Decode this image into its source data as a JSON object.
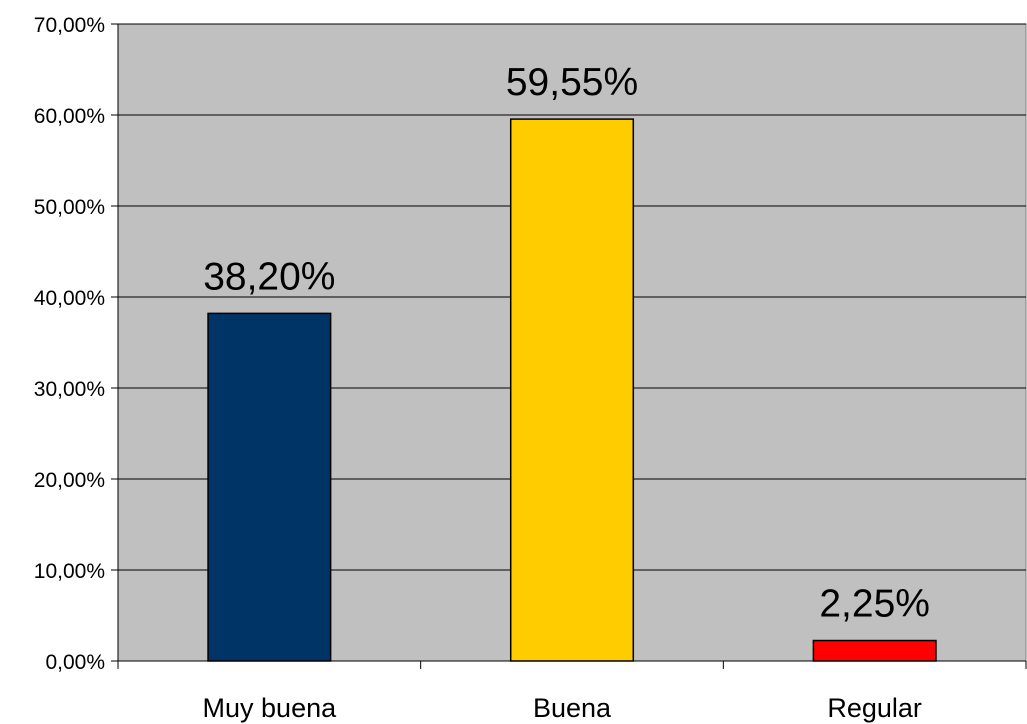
{
  "chart_data": {
    "type": "bar",
    "categories": [
      "Muy buena",
      "Buena",
      "Regular"
    ],
    "values": [
      38.2,
      59.55,
      2.25
    ],
    "data_labels": [
      "38,20%",
      "59,55%",
      "2,25%"
    ],
    "colors": [
      "#003366",
      "#FFCC00",
      "#FF0000"
    ],
    "plot_background": "#C0C0C0",
    "ylim": [
      0,
      70
    ],
    "yticks": [
      0,
      10,
      20,
      30,
      40,
      50,
      60,
      70
    ],
    "ytick_labels": [
      "0,00%",
      "10,00%",
      "20,00%",
      "30,00%",
      "40,00%",
      "50,00%",
      "60,00%",
      "70,00%"
    ],
    "grid": true,
    "legend": "none"
  }
}
